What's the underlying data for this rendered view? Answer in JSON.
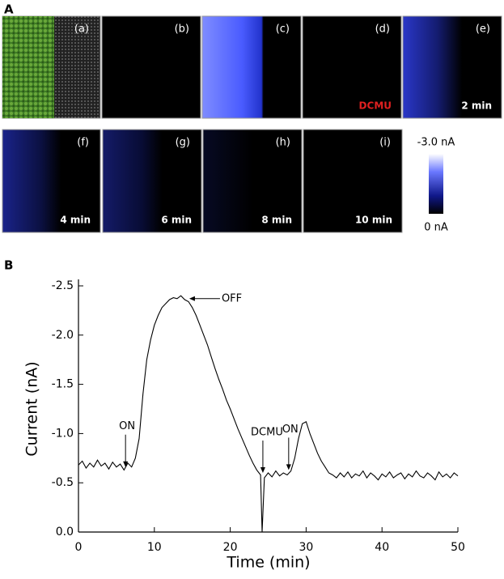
{
  "panel_a": {
    "label": "A",
    "tiles": [
      {
        "label": "(a)"
      },
      {
        "label": "(b)"
      },
      {
        "label": "(c)"
      },
      {
        "label": "(d)",
        "note": "DCMU"
      },
      {
        "label": "(e)",
        "note": "2 min"
      },
      {
        "label": "(f)",
        "note": "4 min"
      },
      {
        "label": "(g)",
        "note": "6 min"
      },
      {
        "label": "(h)",
        "note": "8 min"
      },
      {
        "label": "(i)",
        "note": "10 min"
      }
    ],
    "colorbar": {
      "top_label": "-3.0 nA",
      "bottom_label": "0 nA"
    }
  },
  "chart_data": {
    "type": "line",
    "panel_label": "B",
    "x_label": "Time (min)",
    "y_label": "Current (nA)",
    "color": "#000000",
    "xlim": [
      0,
      50
    ],
    "xticks": [
      0,
      10,
      20,
      30,
      40,
      50
    ],
    "ylim": [
      0,
      -2.5
    ],
    "yticks": [
      {
        "value": 0,
        "label": "0.0"
      },
      -0.5,
      {
        "value": -1,
        "label": "-1.0"
      },
      -1.5,
      {
        "value": -2,
        "label": "-2.0"
      },
      -2.5
    ],
    "x": [
      0,
      0.5,
      1,
      1.5,
      2,
      2.5,
      3,
      3.5,
      4,
      4.5,
      5,
      5.5,
      6,
      6.5,
      7,
      7.5,
      8,
      8.5,
      9,
      9.5,
      10,
      10.5,
      11,
      11.5,
      12,
      12.5,
      13,
      13.5,
      14,
      14.5,
      15,
      15.5,
      16,
      16.5,
      17,
      17.5,
      18,
      18.5,
      19,
      19.5,
      20,
      20.5,
      21,
      21.5,
      22,
      22.5,
      23,
      23.5,
      24,
      24.2,
      24.5,
      25,
      25.5,
      26,
      26.5,
      27,
      27.5,
      28,
      28.5,
      29,
      29.5,
      30,
      30.5,
      31,
      31.5,
      32,
      32.5,
      33,
      33.5,
      34,
      34.5,
      35,
      35.5,
      36,
      36.5,
      37,
      37.5,
      38,
      38.5,
      39,
      39.5,
      40,
      40.5,
      41,
      41.5,
      42,
      42.5,
      43,
      43.5,
      44,
      44.5,
      45,
      45.5,
      46,
      46.5,
      47,
      47.5,
      48,
      48.5,
      49,
      49.5,
      50
    ],
    "values": [
      -0.68,
      -0.72,
      -0.65,
      -0.7,
      -0.66,
      -0.73,
      -0.67,
      -0.7,
      -0.64,
      -0.71,
      -0.66,
      -0.69,
      -0.63,
      -0.7,
      -0.66,
      -0.75,
      -0.95,
      -1.4,
      -1.75,
      -1.95,
      -2.1,
      -2.2,
      -2.28,
      -2.32,
      -2.36,
      -2.38,
      -2.37,
      -2.4,
      -2.36,
      -2.34,
      -2.28,
      -2.2,
      -2.1,
      -2.0,
      -1.9,
      -1.78,
      -1.66,
      -1.55,
      -1.45,
      -1.34,
      -1.25,
      -1.15,
      -1.05,
      -0.96,
      -0.87,
      -0.78,
      -0.7,
      -0.63,
      -0.58,
      0,
      -0.55,
      -0.6,
      -0.56,
      -0.62,
      -0.57,
      -0.6,
      -0.58,
      -0.62,
      -0.75,
      -0.95,
      -1.1,
      -1.12,
      -1.0,
      -0.9,
      -0.8,
      -0.72,
      -0.66,
      -0.6,
      -0.58,
      -0.55,
      -0.6,
      -0.56,
      -0.61,
      -0.55,
      -0.59,
      -0.57,
      -0.62,
      -0.55,
      -0.6,
      -0.57,
      -0.53,
      -0.59,
      -0.56,
      -0.61,
      -0.55,
      -0.58,
      -0.6,
      -0.54,
      -0.59,
      -0.56,
      -0.62,
      -0.57,
      -0.55,
      -0.6,
      -0.57,
      -0.53,
      -0.61,
      -0.56,
      -0.59,
      -0.55,
      -0.6,
      -0.57
    ],
    "annotations": [
      {
        "text": "ON",
        "x": 6.2,
        "y": -0.66
      },
      {
        "text": "OFF",
        "x": 14.6,
        "y": -2.37
      },
      {
        "text": "DCMU",
        "x": 24.3,
        "y": -0.6
      },
      {
        "text": "ON",
        "x": 27.7,
        "y": -0.63
      }
    ]
  }
}
